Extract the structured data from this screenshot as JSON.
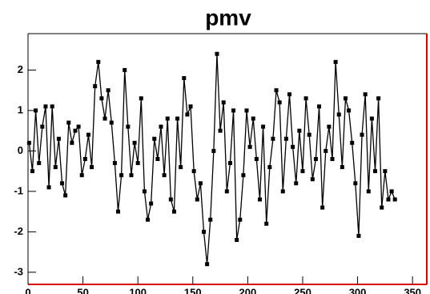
{
  "chart_data": {
    "type": "line",
    "title": "pmv",
    "x": [
      1,
      4,
      7,
      10,
      13,
      16,
      19,
      22,
      25,
      28,
      31,
      34,
      37,
      40,
      43,
      46,
      49,
      52,
      55,
      58,
      61,
      64,
      67,
      70,
      73,
      76,
      79,
      82,
      85,
      88,
      91,
      94,
      97,
      100,
      103,
      106,
      109,
      112,
      115,
      118,
      121,
      124,
      127,
      130,
      133,
      136,
      139,
      142,
      145,
      148,
      151,
      154,
      157,
      160,
      163,
      166,
      169,
      172,
      175,
      178,
      181,
      184,
      187,
      190,
      193,
      196,
      199,
      202,
      205,
      208,
      211,
      214,
      217,
      220,
      223,
      226,
      229,
      232,
      235,
      238,
      241,
      244,
      247,
      250,
      253,
      256,
      259,
      262,
      265,
      268,
      271,
      274,
      277,
      280,
      283,
      286,
      289,
      292,
      295,
      298,
      301,
      304,
      307,
      310,
      313,
      316,
      319,
      322,
      325,
      328,
      331,
      334
    ],
    "series": [
      {
        "name": "pmv",
        "color": "#000000",
        "values": [
          0.2,
          -0.5,
          1.0,
          -0.3,
          0.6,
          1.1,
          -0.9,
          1.1,
          -0.4,
          0.3,
          -0.8,
          -1.1,
          0.7,
          0.2,
          0.5,
          0.6,
          -0.6,
          -0.2,
          0.4,
          -0.4,
          1.6,
          2.2,
          1.3,
          0.8,
          1.5,
          0.7,
          -0.3,
          -1.5,
          -0.6,
          2.0,
          0.6,
          -0.6,
          0.2,
          -0.3,
          1.3,
          -1.0,
          -1.7,
          -1.3,
          0.3,
          -0.2,
          0.6,
          -0.6,
          0.8,
          -1.2,
          -1.5,
          0.8,
          -0.4,
          1.8,
          0.9,
          1.1,
          -0.5,
          -1.2,
          -0.8,
          -2.0,
          -2.8,
          -1.7,
          0.0,
          2.4,
          0.5,
          1.2,
          -1.0,
          -0.3,
          1.0,
          -2.2,
          -1.7,
          -0.6,
          1.0,
          0.1,
          0.8,
          -0.2,
          -1.2,
          0.6,
          -1.8,
          -0.4,
          0.3,
          1.5,
          1.2,
          -1.0,
          0.3,
          1.4,
          0.1,
          -0.8,
          0.5,
          -0.5,
          1.3,
          0.4,
          -0.7,
          -0.2,
          1.1,
          -1.4,
          0.0,
          0.6,
          -0.2,
          2.2,
          0.9,
          -0.4,
          1.3,
          1.0,
          0.2,
          -0.8,
          -2.1,
          0.4,
          1.4,
          -1.0,
          0.8,
          -0.5,
          1.3,
          -1.4,
          -0.5,
          -1.2,
          -1.0,
          -1.2
        ]
      }
    ],
    "xlim": [
      0,
      363
    ],
    "ylim": [
      -3.3,
      2.9
    ],
    "xticks": [
      0,
      50,
      100,
      150,
      200,
      250,
      300,
      350
    ],
    "yticks": [
      -3,
      -2,
      -1,
      0,
      1,
      2
    ]
  }
}
